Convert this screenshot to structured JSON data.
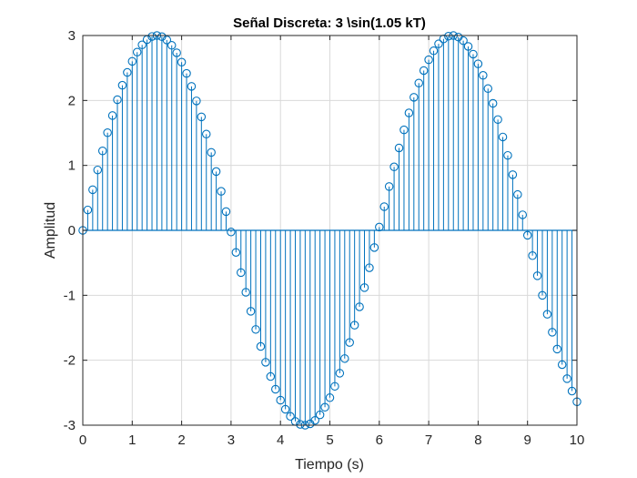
{
  "chart_data": {
    "type": "stem",
    "title": "Señal Discreta: 3 \\sin(1.05 kT)",
    "xlabel": "Tiempo (s)",
    "ylabel": "Amplitud",
    "amplitude": 3,
    "omega": 1.05,
    "sample_period": 0.1,
    "x_start": 0,
    "x_end": 10,
    "xlim": [
      0,
      10
    ],
    "ylim": [
      -3,
      3
    ],
    "xticks": [
      0,
      1,
      2,
      3,
      4,
      5,
      6,
      7,
      8,
      9,
      10
    ],
    "yticks": [
      -3,
      -2,
      -1,
      0,
      1,
      2,
      3
    ],
    "grid": true,
    "marker": "circle",
    "colors": {
      "series": "#0072BD",
      "grid": "#d9d9d9",
      "axis": "#262626",
      "baseline": "#0072BD"
    }
  }
}
